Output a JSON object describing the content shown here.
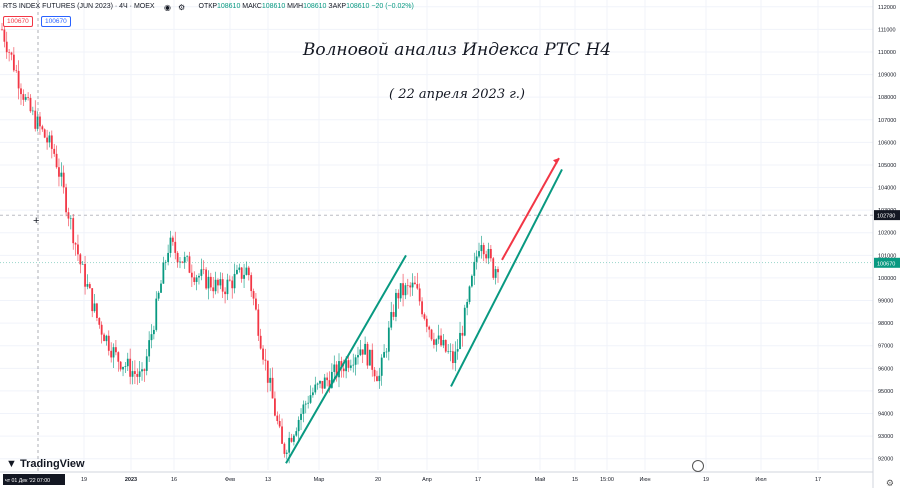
{
  "header": {
    "symbol": "RTS INDEX FUTURES (JUN 2023) · 4Ч · MOEX",
    "open_label": "ОТКР",
    "open": "108610",
    "high_label": "МАКС",
    "high": "108610",
    "low_label": "МИН",
    "low": "108610",
    "close_label": "ЗАКР",
    "close": "108610",
    "change": "−20 (−0.02%)",
    "bid": "100670",
    "ask": "100670"
  },
  "annotation": {
    "title": "Волновой анализ Индекса РТС Н4",
    "subtitle": "( 22 апреля 2023 г.)"
  },
  "branding": {
    "logo": "TradingView"
  },
  "icons": {
    "eye": "eye-icon",
    "settings": "gear-icon",
    "clock": "clock-icon"
  },
  "colors": {
    "up": "#089981",
    "down": "#f23645",
    "channel": "#089981",
    "arrow": "#f23645",
    "current_price": "#131722",
    "grid": "#f0f3fa"
  },
  "chart_data": {
    "type": "candlestick",
    "instrument": "RTS INDEX FUTURES (JUN 2023)",
    "timeframe": "4Ч",
    "y_axis": {
      "ticks": [
        92000,
        93000,
        94000,
        95000,
        96000,
        97000,
        98000,
        99000,
        100000,
        101000,
        102000,
        103000,
        104000,
        105000,
        106000,
        107000,
        108000,
        109000,
        110000,
        111000,
        112000
      ],
      "range": [
        91500,
        112300
      ]
    },
    "x_axis": {
      "ticks": [
        "19",
        "2023",
        "16",
        "Фев",
        "13",
        "Мар",
        "20",
        "Апр",
        "17",
        "Май",
        "15",
        "15:00",
        "Июн",
        "19",
        "Июл",
        "17"
      ],
      "crosshair_label": "чт 01 Дек '22  07:00"
    },
    "price_labels": {
      "crosshair": "102780",
      "current": "100670"
    },
    "price_path": [
      [
        0,
        111000
      ],
      [
        0.03,
        107500
      ],
      [
        0.06,
        105500
      ],
      [
        0.09,
        100500
      ],
      [
        0.11,
        98000
      ],
      [
        0.13,
        96500
      ],
      [
        0.16,
        95500
      ],
      [
        0.19,
        101500
      ],
      [
        0.22,
        100200
      ],
      [
        0.25,
        99500
      ],
      [
        0.28,
        100400
      ],
      [
        0.3,
        96200
      ],
      [
        0.32,
        92300
      ],
      [
        0.35,
        94800
      ],
      [
        0.38,
        95800
      ],
      [
        0.41,
        97000
      ],
      [
        0.43,
        95600
      ],
      [
        0.45,
        99300
      ],
      [
        0.47,
        99600
      ],
      [
        0.49,
        97500
      ],
      [
        0.515,
        96300
      ],
      [
        0.53,
        98700
      ],
      [
        0.545,
        101900
      ],
      [
        0.56,
        100300
      ],
      [
        0.565,
        100700
      ]
    ],
    "channel_lines": [
      {
        "from": [
          "Фев 13+",
          91800
        ],
        "to": [
          "Мар 20+",
          101000
        ]
      },
      {
        "from": [
          "Апр 10",
          95200
        ],
        "to": [
          "Май 1+",
          104800
        ]
      }
    ],
    "projection_arrow": {
      "from": 100800,
      "to": 105300
    }
  }
}
